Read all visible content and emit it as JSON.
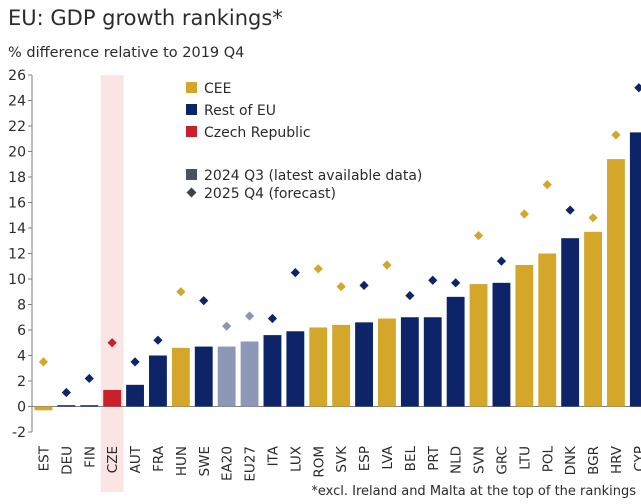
{
  "title": "EU: GDP growth rankings*",
  "subtitle": "% difference relative to 2019 Q4",
  "footnote": "*excl. Ireland and Malta at the top of the rankings",
  "colors": {
    "CEE": "#d4a62a",
    "Rest of EU": "#0e2469",
    "Czech Republic": "#c8202c",
    "Aggregate": "#8c98b6",
    "Aggregate marker": "#8a96b2",
    "Highlight band": "#fbe4e4",
    "Axis": "#7f7f7f",
    "Legend square": "#4a5260",
    "Legend diamond": "#3a4250"
  },
  "chart_data": {
    "type": "bar",
    "title": "EU: GDP growth rankings*",
    "subtitle": "% difference relative to 2019 Q4",
    "ylim": [
      -2,
      26
    ],
    "yticks": [
      -2,
      0,
      2,
      4,
      6,
      8,
      10,
      12,
      14,
      16,
      18,
      20,
      22,
      24,
      26
    ],
    "grid": false,
    "legend_position": "top-left",
    "highlight_category": "CZE",
    "groups_legend": [
      "CEE",
      "Rest of EU",
      "Czech Republic"
    ],
    "series_legend": [
      "2024 Q3 (latest available data)",
      "2025 Q4 (forecast)"
    ],
    "categories": [
      "EST",
      "DEU",
      "FIN",
      "CZE",
      "AUT",
      "FRA",
      "HUN",
      "SWE",
      "EA20",
      "EU27",
      "ITA",
      "LUX",
      "ROM",
      "SVK",
      "ESP",
      "LVA",
      "BEL",
      "PRT",
      "NLD",
      "SVN",
      "GRC",
      "LTU",
      "POL",
      "DNK",
      "BGR",
      "HRV",
      "CYP"
    ],
    "groups": [
      "CEE",
      "Rest of EU",
      "Rest of EU",
      "Czech Republic",
      "Rest of EU",
      "Rest of EU",
      "CEE",
      "Rest of EU",
      "Aggregate",
      "Aggregate",
      "Rest of EU",
      "Rest of EU",
      "CEE",
      "CEE",
      "Rest of EU",
      "CEE",
      "Rest of EU",
      "Rest of EU",
      "Rest of EU",
      "CEE",
      "Rest of EU",
      "CEE",
      "CEE",
      "Rest of EU",
      "CEE",
      "CEE",
      "Rest of EU"
    ],
    "series": [
      {
        "name": "2024 Q3 (latest available data)",
        "kind": "bar",
        "values": [
          -0.3,
          0.1,
          0.1,
          1.3,
          1.7,
          4.0,
          4.6,
          4.7,
          4.7,
          5.1,
          5.6,
          5.9,
          6.2,
          6.4,
          6.6,
          6.9,
          7.0,
          7.0,
          8.6,
          9.6,
          9.7,
          11.1,
          12.0,
          13.2,
          13.7,
          19.4,
          21.5
        ]
      },
      {
        "name": "2025 Q4 (forecast)",
        "kind": "diamond",
        "values": [
          3.5,
          1.1,
          2.2,
          5.0,
          3.5,
          5.2,
          9.0,
          8.3,
          6.3,
          7.1,
          6.9,
          10.5,
          10.8,
          9.4,
          9.5,
          11.1,
          8.7,
          9.9,
          9.7,
          13.4,
          11.4,
          15.1,
          17.4,
          15.4,
          14.8,
          21.3,
          25.0
        ]
      }
    ]
  }
}
